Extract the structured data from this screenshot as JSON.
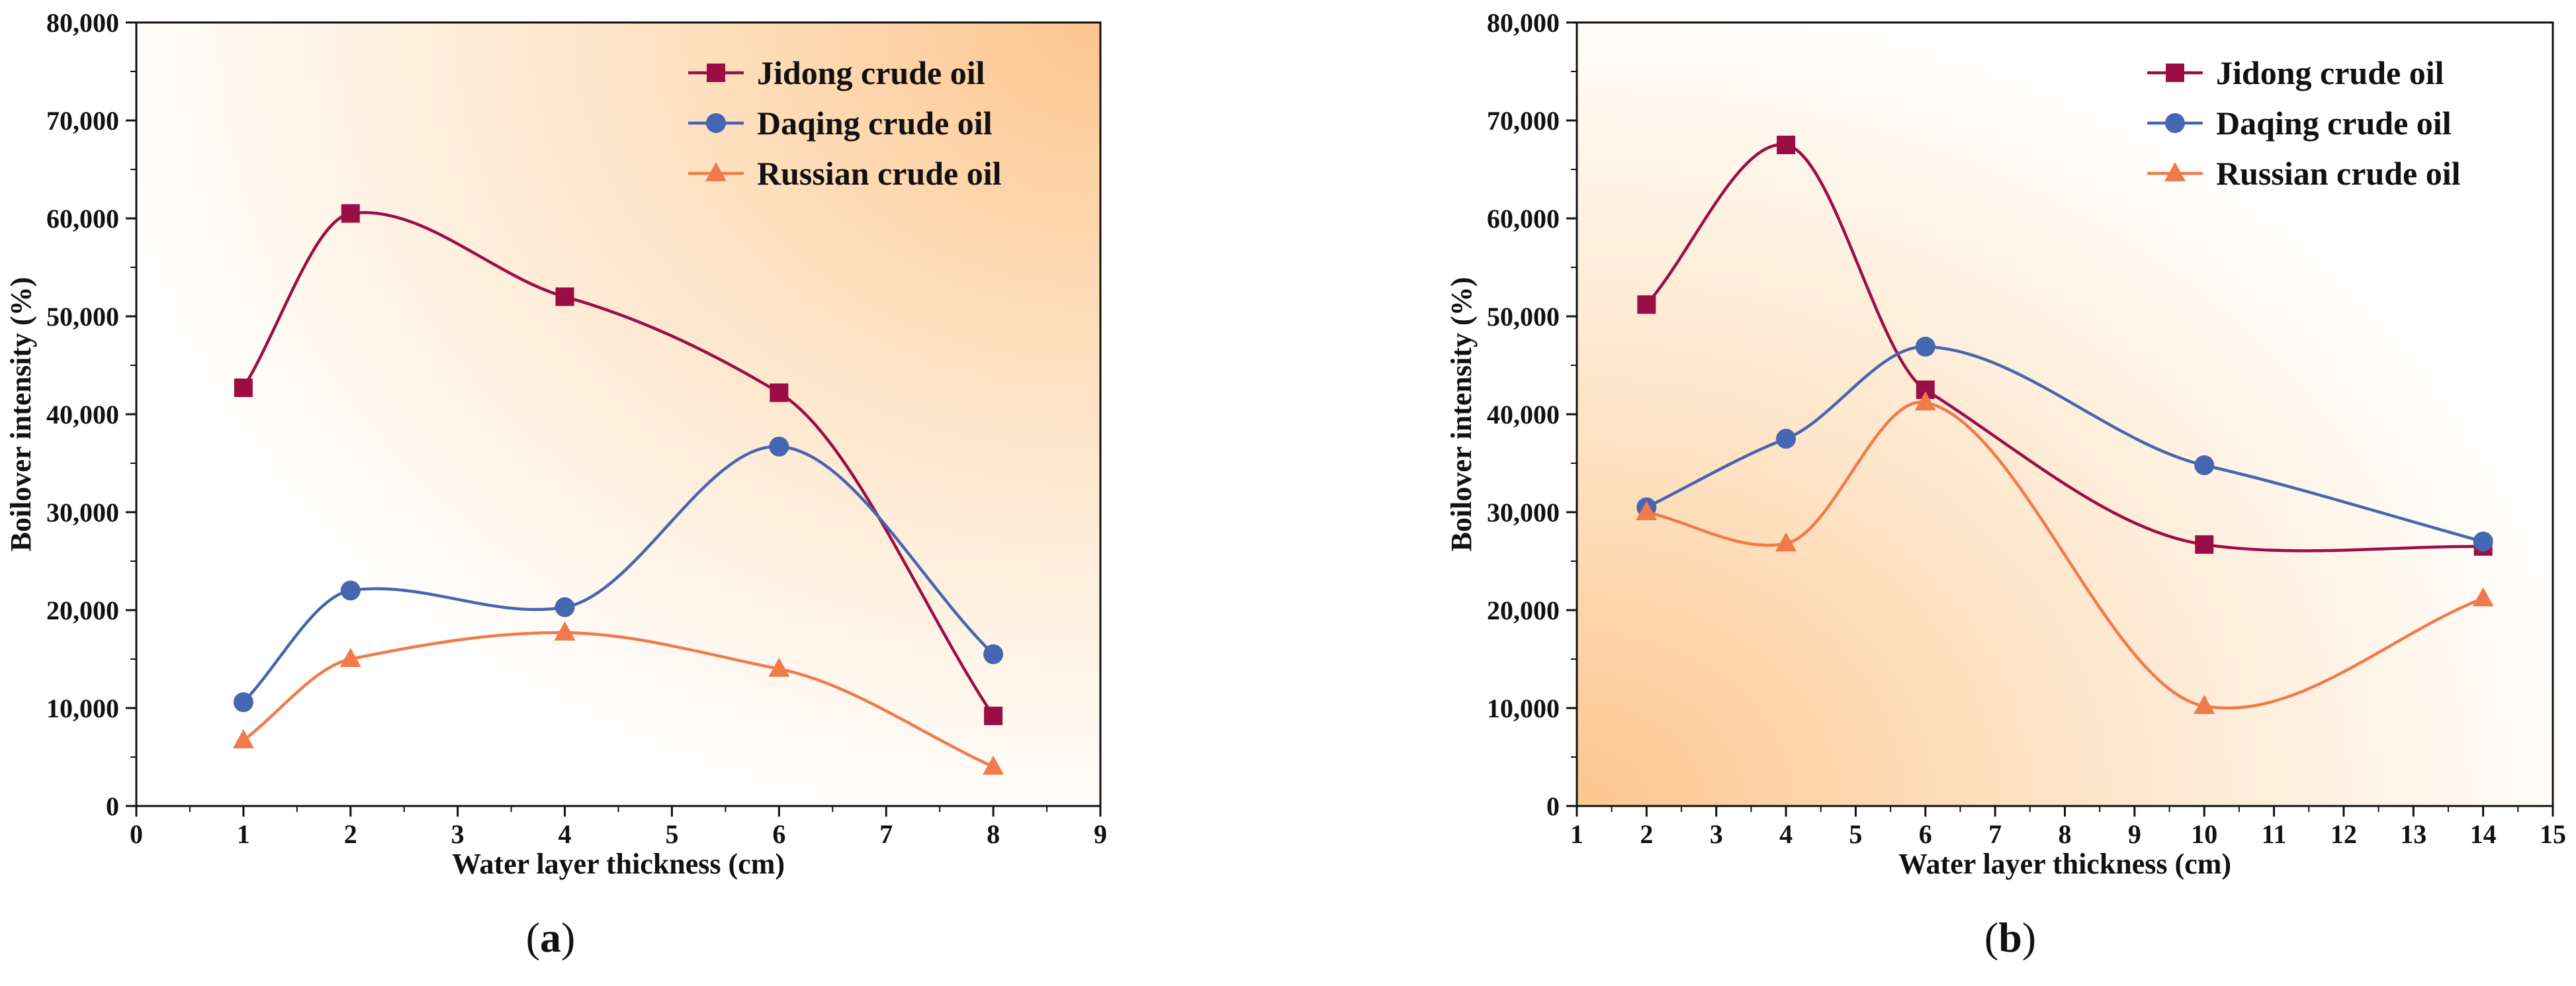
{
  "colors": {
    "jidong": "#9b0e45",
    "daqing": "#4566b0",
    "russian": "#f07a4a",
    "bg_orange": "#fdc68f",
    "axis": "#111111"
  },
  "chart_data": [
    {
      "type": "line",
      "caption_open": "(",
      "caption_letter": "a",
      "caption_close": ")",
      "xlabel": "Water layer thickness (cm)",
      "ylabel": "Boilover intensity (%)",
      "xlim": [
        0,
        9
      ],
      "ylim": [
        0,
        80000
      ],
      "xticks": [
        0,
        1,
        2,
        3,
        4,
        5,
        6,
        7,
        8,
        9
      ],
      "yticks": [
        0,
        10000,
        20000,
        30000,
        40000,
        50000,
        60000,
        70000,
        80000
      ],
      "ytick_labels": [
        "0",
        "10,000",
        "20,000",
        "30,000",
        "40,000",
        "50,000",
        "60,000",
        "70,000",
        "80,000"
      ],
      "legend_position": "top-right",
      "background_gradient": "orange toward top-right",
      "series": [
        {
          "name": "Jidong crude oil",
          "color_key": "jidong",
          "marker": "square",
          "x": [
            1,
            2,
            4,
            6,
            8
          ],
          "y": [
            42700,
            60500,
            52000,
            42200,
            9200
          ]
        },
        {
          "name": "Daqing crude oil",
          "color_key": "daqing",
          "marker": "circle",
          "x": [
            1,
            2,
            4,
            6,
            8
          ],
          "y": [
            10600,
            22000,
            20300,
            36700,
            15500
          ]
        },
        {
          "name": "Russian crude oil",
          "color_key": "russian",
          "marker": "triangle",
          "x": [
            1,
            2,
            4,
            6,
            8
          ],
          "y": [
            6700,
            15000,
            17700,
            14000,
            4000
          ]
        }
      ]
    },
    {
      "type": "line",
      "caption_open": "(",
      "caption_letter": "b",
      "caption_close": ")",
      "xlabel": "Water layer thickness (cm)",
      "ylabel": "Boilover intensity (%)",
      "xlim": [
        1,
        15
      ],
      "ylim": [
        0,
        80000
      ],
      "xticks": [
        1,
        2,
        3,
        4,
        5,
        6,
        7,
        8,
        9,
        10,
        11,
        12,
        13,
        14,
        15
      ],
      "yticks": [
        0,
        10000,
        20000,
        30000,
        40000,
        50000,
        60000,
        70000,
        80000
      ],
      "ytick_labels": [
        "0",
        "10,000",
        "20,000",
        "30,000",
        "40,000",
        "50,000",
        "60,000",
        "70,000",
        "80,000"
      ],
      "legend_position": "top-right",
      "background_gradient": "orange toward bottom-left",
      "series": [
        {
          "name": "Jidong crude oil",
          "color_key": "jidong",
          "marker": "square",
          "x": [
            2,
            4,
            6,
            10,
            14
          ],
          "y": [
            51200,
            67500,
            42500,
            26700,
            26500
          ]
        },
        {
          "name": "Daqing crude oil",
          "color_key": "daqing",
          "marker": "circle",
          "x": [
            2,
            4,
            6,
            10,
            14
          ],
          "y": [
            30500,
            37500,
            46900,
            34800,
            27000
          ]
        },
        {
          "name": "Russian crude oil",
          "color_key": "russian",
          "marker": "triangle",
          "x": [
            2,
            4,
            6,
            10,
            14
          ],
          "y": [
            30000,
            26800,
            41200,
            10200,
            21200
          ]
        }
      ]
    }
  ]
}
